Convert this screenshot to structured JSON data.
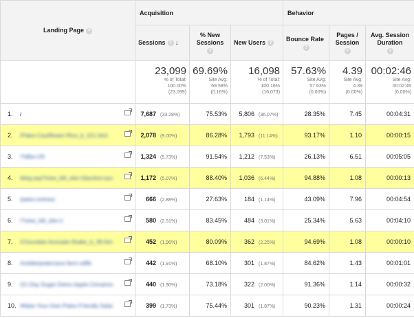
{
  "headers": {
    "landing_page": "Landing Page",
    "acquisition": "Acquisition",
    "behavior": "Behavior",
    "sessions": "Sessions",
    "pct_new_sessions": "% New Sessions",
    "new_users": "New Users",
    "bounce_rate": "Bounce Rate",
    "pages_session": "Pages / Session",
    "avg_session_duration": "Avg. Session Duration",
    "help_glyph": "?",
    "sort_glyph": "↓"
  },
  "totals": {
    "sessions": {
      "value": "23,099",
      "line1": "% of Total:",
      "line2": "100.00%",
      "line3": "(23,099)"
    },
    "pct_new": {
      "value": "69.69%",
      "line1": "Site Avg:",
      "line2": "69.58%",
      "line3": "(0.16%)"
    },
    "new_users": {
      "value": "16,098",
      "line1": "% of Total:",
      "line2": "100.16%",
      "line3": "(16,073)"
    },
    "bounce": {
      "value": "57.63%",
      "line1": "Site Avg:",
      "line2": "57.63%",
      "line3": "(0.00%)"
    },
    "pages": {
      "value": "4.39",
      "line1": "Site Avg:",
      "line2": "4.39",
      "line3": "(0.00%)"
    },
    "duration": {
      "value": "00:02:46",
      "line1": "Site Avg:",
      "line2": "00:02:46",
      "line3": "(0.00%)"
    }
  },
  "rows": [
    {
      "n": "1.",
      "page": "/",
      "sessions": "7,687",
      "spct": "(33.28%)",
      "pctnew": "75.53%",
      "newusers": "5,806",
      "nupct": "(36.07%)",
      "bounce": "28.35%",
      "pages": "7.45",
      "dur": "00:04:31"
    },
    {
      "n": "2.",
      "page": "/Paleo-Cauliflower-Rice_b_101.html",
      "sessions": "2,078",
      "spct": "(9.00%)",
      "pctnew": "86.28%",
      "newusers": "1,793",
      "nupct": "(11.14%)",
      "bounce": "93.17%",
      "pages": "1.10",
      "dur": "00:00:15"
    },
    {
      "n": "3.",
      "page": "/?dfbn=29",
      "sessions": "1,324",
      "spct": "(5.73%)",
      "pctnew": "91.54%",
      "newusers": "1,212",
      "nupct": "(7.53%)",
      "bounce": "26.13%",
      "pages": "6.51",
      "dur": "00:05:05"
    },
    {
      "n": "4.",
      "page": "/blog.asp?view_bill_site=1&action=posts&id=103",
      "sessions": "1,172",
      "spct": "(5.07%)",
      "pctnew": "88.40%",
      "newusers": "1,036",
      "nupct": "(6.44%)",
      "bounce": "94.88%",
      "pages": "1.08",
      "dur": "00:00:13"
    },
    {
      "n": "5.",
      "page": "/paleo-entrees",
      "sessions": "666",
      "spct": "(2.88%)",
      "pctnew": "27.63%",
      "newusers": "184",
      "nupct": "(1.14%)",
      "bounce": "43.09%",
      "pages": "7.96",
      "dur": "00:04:54"
    },
    {
      "n": "6.",
      "page": "/?view_bill_site=1",
      "sessions": "580",
      "spct": "(2.51%)",
      "pctnew": "83.45%",
      "newusers": "484",
      "nupct": "(3.01%)",
      "bounce": "25.34%",
      "pages": "5.63",
      "dur": "00:04:10"
    },
    {
      "n": "7.",
      "page": "/Chocolate-Avocado-Shake_b_39.html",
      "sessions": "452",
      "spct": "(1.96%)",
      "pctnew": "80.09%",
      "newusers": "362",
      "nupct": "(2.25%)",
      "bounce": "94.69%",
      "pages": "1.08",
      "dur": "00:00:10"
    },
    {
      "n": "8.",
      "page": "/mobile/pederosos-farm-raffle",
      "sessions": "442",
      "spct": "(1.91%)",
      "pctnew": "68.10%",
      "newusers": "301",
      "nupct": "(1.87%)",
      "bounce": "84.62%",
      "pages": "1.43",
      "dur": "00:01:01"
    },
    {
      "n": "9.",
      "page": "/21-Day-Sugar-Detox-Apple-Cinnamon-Donuts_b_83.html",
      "sessions": "440",
      "spct": "(1.90%)",
      "pctnew": "73.18%",
      "newusers": "322",
      "nupct": "(2.00%)",
      "bounce": "91.36%",
      "pages": "1.14",
      "dur": "00:00:32"
    },
    {
      "n": "10.",
      "page": "/Make-Your-Own-Paleo-Friendly-Salad-Dressings_b_97.html",
      "sessions": "399",
      "spct": "(1.73%)",
      "pctnew": "75.44%",
      "newusers": "301",
      "nupct": "(1.87%)",
      "bounce": "90.23%",
      "pages": "1.31",
      "dur": "00:00:24"
    }
  ],
  "highlighted_rows": [
    1,
    3,
    6
  ],
  "colors": {
    "highlight": "#ffff9e",
    "header_bg": "#f3f3f3",
    "link": "#1a0dab"
  }
}
